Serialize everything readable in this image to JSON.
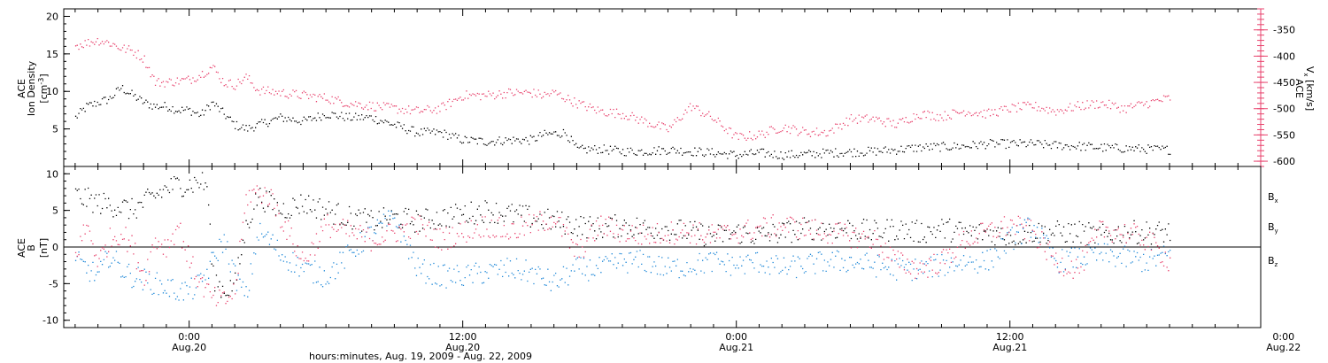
{
  "chart_data": [
    {
      "type": "scatter",
      "panel": "ace-ion-density-velocity",
      "ylabel_lines": [
        "ACE",
        "Ion Density"
      ],
      "yunit": "[cm",
      "yunit_exp": "-3",
      "yunit_close": "]",
      "ylim": [
        0,
        21
      ],
      "yticks": [
        "5",
        "10",
        "15",
        "20"
      ],
      "ytick_values": [
        5,
        10,
        15,
        20
      ],
      "y2label_lines": [
        "ACE",
        "V"
      ],
      "y2label_sub": "x",
      "y2unit": "[km/s]",
      "y2lim": [
        -610,
        -310
      ],
      "y2ticks": [
        "-350",
        "-400",
        "-450",
        "-500",
        "-550",
        "-600"
      ],
      "y2tick_values": [
        -350,
        -400,
        -450,
        -500,
        -550,
        -600
      ],
      "series": [
        {
          "color": "#000000",
          "axis": "left",
          "x": [
            -5.0,
            -4.5,
            -4.0,
            -3.5,
            -3.0,
            -2.5,
            -2.0,
            -1.5,
            -1.0,
            -0.5,
            0.0,
            0.5,
            1.0,
            1.5,
            2.0,
            2.5,
            3.0,
            4.0,
            5.0,
            6.0,
            7.0,
            8.0,
            9.0,
            10.0,
            11.0,
            12.0,
            13.0,
            14.0,
            15.0,
            15.5,
            16.5,
            17.0,
            18.0,
            19.0,
            20.0,
            21.0,
            22.0,
            23.0,
            24.0,
            25.0,
            26.0,
            27.0,
            28.0,
            29.0,
            30.0,
            31.0,
            32.0,
            33.0,
            34.0,
            35.0,
            36.0,
            37.0,
            38.0,
            39.0,
            40.0,
            41.0,
            42.0,
            43.0
          ],
          "y": [
            6.5,
            8.0,
            8.5,
            9.0,
            10.5,
            9.5,
            8.5,
            8.0,
            8.0,
            7.5,
            7.5,
            6.8,
            8.5,
            7.0,
            5.5,
            5.0,
            5.5,
            6.5,
            6.0,
            7.0,
            6.5,
            6.5,
            5.5,
            4.5,
            4.5,
            3.5,
            3.3,
            3.5,
            3.5,
            4.2,
            4.5,
            2.2,
            2.3,
            2.0,
            2.0,
            2.2,
            2.0,
            1.8,
            1.5,
            1.8,
            1.5,
            1.6,
            1.8,
            1.9,
            2.0,
            2.2,
            2.5,
            2.6,
            2.7,
            3.0,
            3.0,
            3.0,
            2.8,
            2.7,
            2.5,
            2.4,
            2.3,
            2.2
          ]
        },
        {
          "color": "#e8416c",
          "axis": "right",
          "x": [
            -5.0,
            -4.5,
            -4.0,
            -3.5,
            -3.0,
            -2.5,
            -2.0,
            -1.5,
            -1.0,
            0.0,
            0.5,
            1.0,
            1.5,
            2.0,
            2.5,
            3.0,
            4.0,
            5.0,
            6.0,
            7.0,
            8.0,
            9.0,
            10.0,
            11.0,
            12.0,
            13.0,
            14.0,
            15.0,
            15.5,
            16.0,
            17.0,
            18.0,
            19.0,
            20.0,
            21.0,
            22.0,
            23.0,
            24.0,
            25.0,
            26.0,
            27.0,
            28.0,
            29.0,
            30.0,
            31.0,
            32.0,
            33.0,
            34.0,
            35.0,
            36.0,
            37.0,
            38.0,
            39.0,
            40.0,
            41.0,
            42.0,
            43.0
          ],
          "y": [
            -380,
            -375,
            -370,
            -375,
            -385,
            -390,
            -405,
            -450,
            -450,
            -445,
            -435,
            -420,
            -450,
            -455,
            -440,
            -465,
            -470,
            -475,
            -480,
            -490,
            -495,
            -500,
            -505,
            -500,
            -475,
            -475,
            -470,
            -470,
            -475,
            -470,
            -490,
            -505,
            -510,
            -525,
            -540,
            -495,
            -520,
            -555,
            -550,
            -535,
            -545,
            -545,
            -520,
            -520,
            -530,
            -510,
            -515,
            -505,
            -510,
            -500,
            -495,
            -505,
            -495,
            -490,
            -500,
            -490,
            -480
          ]
        }
      ]
    },
    {
      "type": "scatter",
      "panel": "ace-magnetic-field",
      "ylabel_lines": [
        "ACE",
        "B"
      ],
      "yunit": "[nT]",
      "ylim": [
        -11,
        11
      ],
      "yticks": [
        "10",
        "5",
        "0",
        "-5",
        "-10"
      ],
      "ytick_values": [
        10,
        5,
        0,
        -5,
        -10
      ],
      "zero_line": true,
      "legend": [
        {
          "label": "B",
          "sub": "x",
          "color": "#000000"
        },
        {
          "label": "B",
          "sub": "y",
          "color": "#1f88d8"
        },
        {
          "label": "B",
          "sub": "z",
          "color": "#e8416c"
        }
      ],
      "series": [
        {
          "label": "Bx",
          "color": "#000000",
          "x": [
            -5.0,
            -4.5,
            -4.0,
            -3.0,
            -2.5,
            -2.0,
            -1.5,
            -1.0,
            -0.5,
            0.0,
            0.5,
            0.8,
            1.0,
            1.5,
            2.0,
            2.5,
            3.0,
            3.5,
            4.0,
            5.0,
            6.0,
            7.0,
            8.0,
            9.0,
            10.0,
            11.0,
            12.0,
            13.0,
            14.0,
            15.0,
            16.0,
            17.0,
            18.0,
            19.0,
            20.0,
            21.0,
            22.0,
            23.0,
            24.0,
            25.0,
            26.0,
            27.0,
            28.0,
            29.0,
            30.0,
            31.0,
            32.0,
            33.0,
            34.0,
            35.0,
            36.0,
            37.0,
            38.0,
            39.0,
            40.0,
            41.0,
            42.0,
            43.0
          ],
          "y": [
            7.0,
            6.5,
            6.0,
            5.5,
            5.0,
            6.0,
            7.0,
            8.0,
            8.5,
            8.5,
            9.0,
            8.0,
            -4.0,
            -6.0,
            -5.0,
            3.0,
            7.0,
            6.0,
            5.0,
            6.0,
            5.0,
            4.0,
            3.5,
            4.0,
            3.5,
            4.0,
            4.5,
            5.0,
            4.5,
            4.0,
            3.5,
            3.0,
            2.5,
            3.0,
            2.5,
            2.5,
            2.0,
            1.5,
            2.0,
            1.5,
            2.0,
            2.5,
            2.5,
            2.5,
            2.0,
            2.5,
            2.0,
            2.5,
            2.0,
            2.0,
            1.5,
            2.0,
            2.0,
            2.0,
            1.5,
            2.0,
            2.0,
            2.0
          ]
        },
        {
          "label": "By",
          "color": "#1f88d8",
          "x": [
            -5.0,
            -4.5,
            -4.0,
            -3.5,
            -3.0,
            -2.5,
            -2.0,
            -1.5,
            -1.0,
            -0.5,
            0.0,
            0.5,
            1.0,
            1.5,
            2.0,
            2.5,
            3.0,
            3.5,
            4.0,
            5.0,
            6.0,
            7.0,
            8.0,
            9.0,
            10.0,
            11.0,
            12.0,
            13.0,
            14.0,
            15.0,
            16.0,
            17.0,
            18.0,
            19.0,
            20.0,
            21.0,
            22.0,
            23.0,
            24.0,
            25.0,
            26.0,
            27.0,
            28.0,
            29.0,
            30.0,
            31.0,
            32.0,
            33.0,
            34.0,
            35.0,
            36.0,
            37.0,
            38.0,
            39.0,
            40.0,
            41.0,
            42.0,
            43.0
          ],
          "y": [
            -2.0,
            -3.0,
            -4.0,
            -1.0,
            -3.0,
            -4.0,
            -4.5,
            -5.0,
            -5.5,
            -6.0,
            -6.0,
            -5.0,
            -2.0,
            1.0,
            -4.0,
            -7.0,
            2.0,
            1.0,
            -1.0,
            -3.0,
            -4.0,
            -1.0,
            2.0,
            4.0,
            -3.0,
            -4.0,
            -4.0,
            -3.5,
            -3.0,
            -3.5,
            -5.0,
            -3.0,
            -3.0,
            -2.0,
            -2.0,
            -3.0,
            -2.5,
            -2.0,
            -2.5,
            -2.0,
            -3.0,
            -2.5,
            -2.0,
            -2.0,
            -2.5,
            -3.0,
            -3.0,
            -2.5,
            -2.0,
            -2.0,
            1.0,
            3.0,
            -2.0,
            -1.5,
            -1.0,
            -1.5,
            -2.0,
            -1.0
          ]
        },
        {
          "label": "Bz",
          "color": "#e8416c",
          "x": [
            -5.0,
            -4.5,
            -4.0,
            -3.5,
            -3.0,
            -2.5,
            -2.0,
            -1.5,
            -1.0,
            -0.5,
            0.0,
            0.5,
            1.0,
            1.5,
            2.0,
            2.5,
            3.0,
            3.5,
            4.0,
            5.0,
            6.0,
            7.0,
            8.0,
            9.0,
            10.0,
            11.0,
            12.0,
            13.0,
            14.0,
            15.0,
            16.0,
            17.0,
            18.0,
            19.0,
            20.0,
            21.0,
            22.0,
            23.0,
            24.0,
            25.0,
            26.0,
            27.0,
            28.0,
            29.0,
            30.0,
            31.0,
            32.0,
            33.0,
            34.0,
            35.0,
            36.0,
            37.0,
            38.0,
            39.0,
            40.0,
            41.0,
            42.0,
            43.0
          ],
          "y": [
            -1.0,
            3.0,
            -2.0,
            1.0,
            2.0,
            0.0,
            -4.0,
            1.0,
            0.0,
            3.0,
            -2.0,
            -5.0,
            -7.0,
            -7.5,
            -6.0,
            7.0,
            7.5,
            7.0,
            4.0,
            -2.0,
            3.0,
            2.0,
            1.0,
            2.0,
            3.0,
            1.0,
            2.0,
            3.0,
            2.0,
            3.0,
            4.0,
            -1.0,
            3.0,
            2.0,
            1.5,
            2.0,
            2.0,
            1.5,
            2.0,
            2.5,
            3.0,
            2.5,
            2.0,
            1.5,
            1.0,
            -2.0,
            -3.0,
            -2.0,
            1.0,
            2.0,
            3.0,
            2.0,
            -2.0,
            -3.0,
            2.5,
            2.0,
            1.0,
            -2.0
          ]
        }
      ]
    }
  ],
  "x_axis": {
    "xlim": [
      -5.5,
      47
    ],
    "minor_step": 1,
    "ticks": [
      {
        "value": 0,
        "time": "0:00",
        "date": "Aug.20"
      },
      {
        "value": 12,
        "time": "12:00",
        "date": "Aug.20"
      },
      {
        "value": 24,
        "time": "0:00",
        "date": "Aug.21"
      },
      {
        "value": 36,
        "time": "12:00",
        "date": "Aug.21"
      },
      {
        "value": 48,
        "time": "0:00",
        "date": "Aug.22"
      }
    ],
    "xlabel": "hours:minutes, Aug. 19, 2009 - Aug. 22, 2009"
  }
}
